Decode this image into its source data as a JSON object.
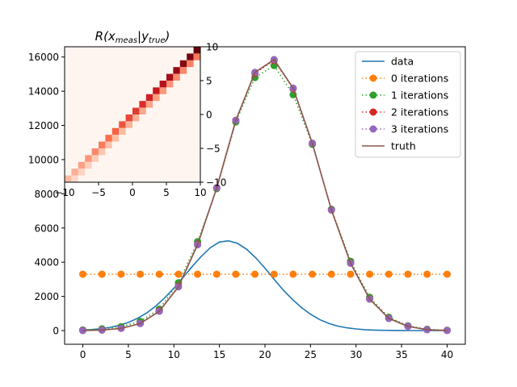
{
  "chart_data": [
    {
      "type": "line",
      "title": "",
      "xlabel": "",
      "ylabel": "",
      "xlim": [
        -2,
        42
      ],
      "ylim": [
        -800,
        16600
      ],
      "x_ticks": [
        0,
        5,
        10,
        15,
        20,
        25,
        30,
        35,
        40
      ],
      "y_ticks": [
        0,
        2000,
        4000,
        6000,
        8000,
        10000,
        12000,
        14000,
        16000
      ],
      "legend_position": "top-right",
      "grid": false,
      "series": [
        {
          "name": "data",
          "style": "solid",
          "color": "#1f77b4",
          "x": [
            0,
            1,
            2,
            3,
            4,
            5,
            6,
            7,
            8,
            9,
            10,
            11,
            12,
            13,
            14,
            15,
            16,
            17,
            18,
            19,
            20,
            21,
            22,
            23,
            24,
            25,
            26,
            27,
            28,
            29,
            30,
            31,
            32,
            33,
            34,
            35,
            36,
            37,
            38,
            39,
            40
          ],
          "y": [
            30,
            60,
            110,
            190,
            310,
            480,
            720,
            1030,
            1430,
            1920,
            2480,
            3100,
            3740,
            4340,
            4850,
            5180,
            5250,
            5100,
            4750,
            4250,
            3650,
            3000,
            2380,
            1830,
            1350,
            960,
            650,
            420,
            260,
            160,
            95,
            55,
            30,
            18,
            10,
            6,
            3,
            2,
            1,
            0,
            0
          ]
        },
        {
          "name": "0 iterations",
          "style": "dotted-markers",
          "color": "#ff7f0e",
          "x": [
            0,
            2.1,
            4.2,
            6.3,
            8.4,
            10.5,
            12.6,
            14.7,
            16.8,
            18.9,
            21.0,
            23.1,
            25.2,
            27.3,
            29.4,
            31.5,
            33.6,
            35.7,
            37.8,
            40.0
          ],
          "y": [
            3300,
            3300,
            3300,
            3300,
            3300,
            3300,
            3300,
            3300,
            3300,
            3300,
            3300,
            3300,
            3300,
            3300,
            3300,
            3300,
            3300,
            3300,
            3300,
            3300
          ]
        },
        {
          "name": "1 iterations",
          "style": "dotted-markers",
          "color": "#2ca02c",
          "x": [
            0,
            2.1,
            4.2,
            6.3,
            8.4,
            10.5,
            12.6,
            14.7,
            16.8,
            18.9,
            21.0,
            23.1,
            25.2,
            27.3,
            29.4,
            31.5,
            33.6,
            35.7,
            37.8,
            40.0
          ],
          "y": [
            40,
            100,
            230,
            540,
            1250,
            2800,
            5200,
            8300,
            12200,
            14800,
            15500,
            13800,
            10900,
            7100,
            4050,
            1950,
            780,
            280,
            75,
            20
          ]
        },
        {
          "name": "2 iterations",
          "style": "dotted-markers",
          "color": "#d62728",
          "x": [
            0,
            2.1,
            4.2,
            6.3,
            8.4,
            10.5,
            12.6,
            14.7,
            16.8,
            18.9,
            21.0,
            23.1,
            25.2,
            27.3,
            29.4,
            31.5,
            33.6,
            35.7,
            37.8,
            40.0
          ],
          "y": [
            10,
            40,
            140,
            420,
            1150,
            2600,
            5050,
            8350,
            12300,
            15050,
            15800,
            14150,
            10950,
            7050,
            3950,
            1850,
            720,
            250,
            60,
            10
          ]
        },
        {
          "name": "3 iterations",
          "style": "dotted-markers",
          "color": "#9467bd",
          "x": [
            0,
            2.1,
            4.2,
            6.3,
            8.4,
            10.5,
            12.6,
            14.7,
            16.8,
            18.9,
            21.0,
            23.1,
            25.2,
            27.3,
            29.4,
            31.5,
            33.6,
            35.7,
            37.8,
            40.0
          ],
          "y": [
            5,
            30,
            130,
            410,
            1130,
            2560,
            5020,
            8350,
            12300,
            15100,
            15850,
            14180,
            10960,
            7050,
            3940,
            1840,
            715,
            245,
            55,
            5
          ]
        },
        {
          "name": "truth",
          "style": "solid",
          "color": "#8c564b",
          "x": [
            0,
            2.1,
            4.2,
            6.3,
            8.4,
            10.5,
            12.6,
            14.7,
            16.8,
            18.9,
            21.0,
            23.1,
            25.2,
            27.3,
            29.4,
            31.5,
            33.6,
            35.7,
            37.8,
            40.0
          ],
          "y": [
            0,
            30,
            130,
            410,
            1130,
            2560,
            5020,
            8350,
            12300,
            15100,
            15850,
            14180,
            10960,
            7050,
            3940,
            1840,
            715,
            245,
            55,
            0
          ]
        }
      ]
    },
    {
      "type": "heatmap",
      "title": "R(x_meas|y_true)",
      "title_base": "R(x",
      "title_sub1": "meas",
      "title_mid": "|y",
      "title_sub2": "true",
      "title_end": ")",
      "colormap": "Reds",
      "diagonal": true,
      "xlim": [
        -10,
        10
      ],
      "ylim": [
        -10,
        10
      ],
      "x_ticks": [
        -10,
        -5,
        0,
        5,
        10
      ],
      "y_ticks": [
        -10,
        -5,
        0,
        5,
        10
      ],
      "y_axis_side": "right",
      "bins": 20,
      "grid": false
    }
  ]
}
